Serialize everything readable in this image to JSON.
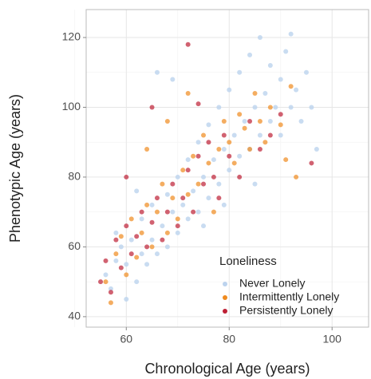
{
  "chart_data": {
    "type": "scatter",
    "x_label": "Chronological Age (years)",
    "y_label": "Phenotypic Age (years)",
    "legend_title": "Loneliness",
    "legend_position": "bottom-right",
    "xlim": [
      52.2,
      107.1
    ],
    "ylim": [
      37,
      128
    ],
    "xticks": [
      60,
      80,
      100
    ],
    "yticks": [
      40,
      60,
      80,
      100,
      120
    ],
    "xminorticks": [
      50,
      70,
      90
    ],
    "yminorticks": [
      50,
      70,
      90,
      110
    ],
    "grid": true,
    "series": [
      {
        "name": "Never Lonely",
        "color": "#bcd3ee",
        "x": [
          56,
          57,
          58,
          59,
          60,
          60,
          61,
          62,
          63,
          63,
          64,
          65,
          65,
          66,
          67,
          68,
          68,
          69,
          70,
          70,
          71,
          72,
          72,
          73,
          74,
          74,
          75,
          76,
          76,
          77,
          78,
          78,
          79,
          80,
          80,
          81,
          82,
          82,
          83,
          84,
          84,
          85,
          86,
          86,
          87,
          88,
          88,
          89,
          90,
          90,
          91,
          92,
          93,
          94,
          95,
          96,
          97,
          66,
          69,
          75,
          79,
          85,
          62,
          58,
          92
        ],
        "values": [
          52,
          48,
          56,
          60,
          45,
          55,
          62,
          50,
          58,
          68,
          55,
          72,
          62,
          58,
          66,
          75,
          60,
          70,
          64,
          80,
          72,
          68,
          85,
          76,
          70,
          90,
          80,
          74,
          95,
          85,
          78,
          100,
          88,
          82,
          105,
          92,
          86,
          110,
          96,
          88,
          115,
          100,
          92,
          120,
          104,
          96,
          112,
          100,
          108,
          92,
          116,
          100,
          105,
          96,
          110,
          100,
          88,
          110,
          108,
          66,
          72,
          78,
          76,
          64,
          121
        ]
      },
      {
        "name": "Intermittently Lonely",
        "color": "#ef8a1e",
        "x": [
          56,
          57,
          58,
          59,
          60,
          61,
          62,
          63,
          64,
          65,
          66,
          67,
          68,
          69,
          70,
          71,
          72,
          73,
          74,
          75,
          76,
          77,
          78,
          79,
          80,
          81,
          82,
          83,
          84,
          85,
          86,
          87,
          88,
          90,
          91,
          92,
          93,
          64,
          68,
          72
        ],
        "values": [
          50,
          44,
          58,
          63,
          52,
          68,
          57,
          64,
          72,
          60,
          70,
          78,
          64,
          74,
          68,
          82,
          75,
          86,
          78,
          92,
          84,
          70,
          88,
          96,
          90,
          84,
          98,
          94,
          88,
          104,
          96,
          90,
          100,
          95,
          85,
          106,
          80,
          88,
          96,
          104
        ]
      },
      {
        "name": "Persistently Lonely",
        "color": "#be2035",
        "x": [
          55,
          56,
          57,
          58,
          59,
          60,
          61,
          62,
          63,
          64,
          65,
          66,
          67,
          68,
          69,
          70,
          71,
          72,
          73,
          74,
          75,
          76,
          77,
          78,
          79,
          80,
          82,
          84,
          86,
          88,
          90,
          96,
          65,
          72,
          60,
          74
        ],
        "values": [
          50,
          56,
          47,
          62,
          54,
          66,
          58,
          63,
          70,
          60,
          67,
          74,
          62,
          70,
          78,
          66,
          74,
          82,
          70,
          86,
          78,
          90,
          80,
          74,
          92,
          86,
          80,
          96,
          88,
          92,
          98,
          84,
          100,
          118,
          80,
          101
        ]
      }
    ]
  }
}
